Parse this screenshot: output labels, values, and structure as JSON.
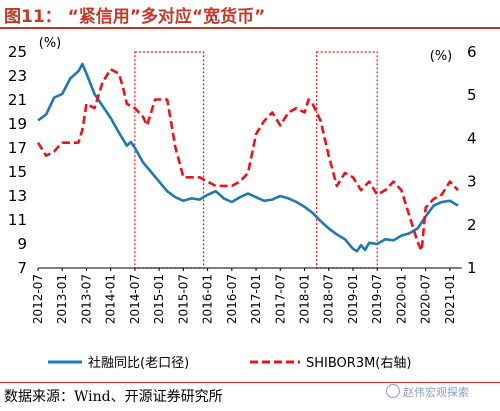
{
  "header": {
    "figure_title": "图11：  “紧信用”多对应“宽货币”"
  },
  "footer": {
    "source": "数据来源：Wind、开源证券研究所",
    "watermark": "赵伟宏观探索"
  },
  "chart_data": {
    "type": "line",
    "left_unit": "(%)",
    "right_unit": "(%)",
    "left_ylim": [
      7,
      25
    ],
    "left_ticks": [
      7,
      9,
      11,
      13,
      15,
      17,
      19,
      21,
      23,
      25
    ],
    "right_ylim": [
      1,
      6
    ],
    "right_ticks": [
      1,
      2,
      3,
      4,
      5,
      6
    ],
    "x_tick_labels": [
      "2012-07",
      "2013-01",
      "2013-07",
      "2014-01",
      "2014-07",
      "2015-01",
      "2015-07",
      "2016-01",
      "2016-07",
      "2017-01",
      "2017-07",
      "2018-01",
      "2018-07",
      "2019-01",
      "2019-07",
      "2020-01",
      "2020-07",
      "2021-01"
    ],
    "x_range": [
      "2012-07",
      "2021-04"
    ],
    "shaded_periods": [
      {
        "start": "2014-07",
        "end": "2015-12"
      },
      {
        "start": "2018-04",
        "end": "2019-07"
      }
    ],
    "series": [
      {
        "name": "社融同比(老口径)",
        "axis": "left",
        "color": "#1f78b4",
        "style": "solid",
        "points": [
          [
            "2012-07",
            19.3
          ],
          [
            "2012-09",
            19.8
          ],
          [
            "2012-11",
            21.2
          ],
          [
            "2013-01",
            21.5
          ],
          [
            "2013-03",
            22.8
          ],
          [
            "2013-05",
            23.4
          ],
          [
            "2013-06",
            24.0
          ],
          [
            "2013-07",
            23.2
          ],
          [
            "2013-09",
            21.5
          ],
          [
            "2013-11",
            20.5
          ],
          [
            "2014-01",
            19.5
          ],
          [
            "2014-03",
            18.3
          ],
          [
            "2014-05",
            17.2
          ],
          [
            "2014-06",
            17.5
          ],
          [
            "2014-07",
            17.0
          ],
          [
            "2014-09",
            15.8
          ],
          [
            "2014-11",
            15.0
          ],
          [
            "2015-01",
            14.2
          ],
          [
            "2015-03",
            13.4
          ],
          [
            "2015-05",
            12.9
          ],
          [
            "2015-07",
            12.6
          ],
          [
            "2015-09",
            12.8
          ],
          [
            "2015-11",
            12.7
          ],
          [
            "2016-01",
            13.1
          ],
          [
            "2016-03",
            13.4
          ],
          [
            "2016-05",
            12.8
          ],
          [
            "2016-07",
            12.5
          ],
          [
            "2016-09",
            12.9
          ],
          [
            "2016-11",
            13.2
          ],
          [
            "2017-01",
            12.9
          ],
          [
            "2017-03",
            12.6
          ],
          [
            "2017-05",
            12.7
          ],
          [
            "2017-07",
            13.0
          ],
          [
            "2017-09",
            12.8
          ],
          [
            "2017-11",
            12.5
          ],
          [
            "2018-01",
            12.1
          ],
          [
            "2018-03",
            11.6
          ],
          [
            "2018-05",
            10.9
          ],
          [
            "2018-07",
            10.3
          ],
          [
            "2018-09",
            9.8
          ],
          [
            "2018-11",
            9.4
          ],
          [
            "2019-01",
            8.6
          ],
          [
            "2019-02",
            8.4
          ],
          [
            "2019-03",
            8.9
          ],
          [
            "2019-04",
            8.5
          ],
          [
            "2019-05",
            9.1
          ],
          [
            "2019-07",
            9.0
          ],
          [
            "2019-09",
            9.4
          ],
          [
            "2019-11",
            9.3
          ],
          [
            "2020-01",
            9.7
          ],
          [
            "2020-03",
            9.9
          ],
          [
            "2020-05",
            10.3
          ],
          [
            "2020-07",
            11.3
          ],
          [
            "2020-09",
            12.2
          ],
          [
            "2020-11",
            12.5
          ],
          [
            "2021-01",
            12.6
          ],
          [
            "2021-03",
            12.2
          ]
        ]
      },
      {
        "name": "SHIBOR3M(右轴)",
        "axis": "right",
        "color": "#e8141b",
        "style": "dashed",
        "points": [
          [
            "2012-07",
            3.9
          ],
          [
            "2012-09",
            3.6
          ],
          [
            "2012-11",
            3.7
          ],
          [
            "2013-01",
            3.9
          ],
          [
            "2013-03",
            3.9
          ],
          [
            "2013-05",
            3.9
          ],
          [
            "2013-06",
            4.2
          ],
          [
            "2013-07",
            4.8
          ],
          [
            "2013-09",
            4.7
          ],
          [
            "2013-11",
            5.3
          ],
          [
            "2014-01",
            5.6
          ],
          [
            "2014-03",
            5.5
          ],
          [
            "2014-04",
            5.2
          ],
          [
            "2014-05",
            4.8
          ],
          [
            "2014-07",
            4.7
          ],
          [
            "2014-09",
            4.5
          ],
          [
            "2014-10",
            4.3
          ],
          [
            "2014-11",
            4.6
          ],
          [
            "2014-12",
            4.9
          ],
          [
            "2015-01",
            4.9
          ],
          [
            "2015-03",
            4.9
          ],
          [
            "2015-05",
            3.8
          ],
          [
            "2015-07",
            3.1
          ],
          [
            "2015-09",
            3.1
          ],
          [
            "2015-11",
            3.1
          ],
          [
            "2016-01",
            3.0
          ],
          [
            "2016-03",
            2.9
          ],
          [
            "2016-05",
            2.9
          ],
          [
            "2016-07",
            2.9
          ],
          [
            "2016-09",
            3.0
          ],
          [
            "2016-11",
            3.2
          ],
          [
            "2017-01",
            4.1
          ],
          [
            "2017-03",
            4.4
          ],
          [
            "2017-05",
            4.6
          ],
          [
            "2017-07",
            4.3
          ],
          [
            "2017-09",
            4.6
          ],
          [
            "2017-11",
            4.7
          ],
          [
            "2018-01",
            4.6
          ],
          [
            "2018-02",
            4.9
          ],
          [
            "2018-03",
            4.8
          ],
          [
            "2018-05",
            4.4
          ],
          [
            "2018-07",
            3.6
          ],
          [
            "2018-09",
            2.9
          ],
          [
            "2018-11",
            3.2
          ],
          [
            "2019-01",
            3.1
          ],
          [
            "2019-03",
            2.8
          ],
          [
            "2019-05",
            3.0
          ],
          [
            "2019-07",
            2.7
          ],
          [
            "2019-09",
            2.8
          ],
          [
            "2019-11",
            3.0
          ],
          [
            "2020-01",
            2.8
          ],
          [
            "2020-03",
            2.2
          ],
          [
            "2020-05",
            1.6
          ],
          [
            "2020-06",
            1.4
          ],
          [
            "2020-07",
            2.4
          ],
          [
            "2020-09",
            2.6
          ],
          [
            "2020-11",
            2.7
          ],
          [
            "2021-01",
            3.0
          ],
          [
            "2021-03",
            2.8
          ]
        ]
      }
    ]
  }
}
